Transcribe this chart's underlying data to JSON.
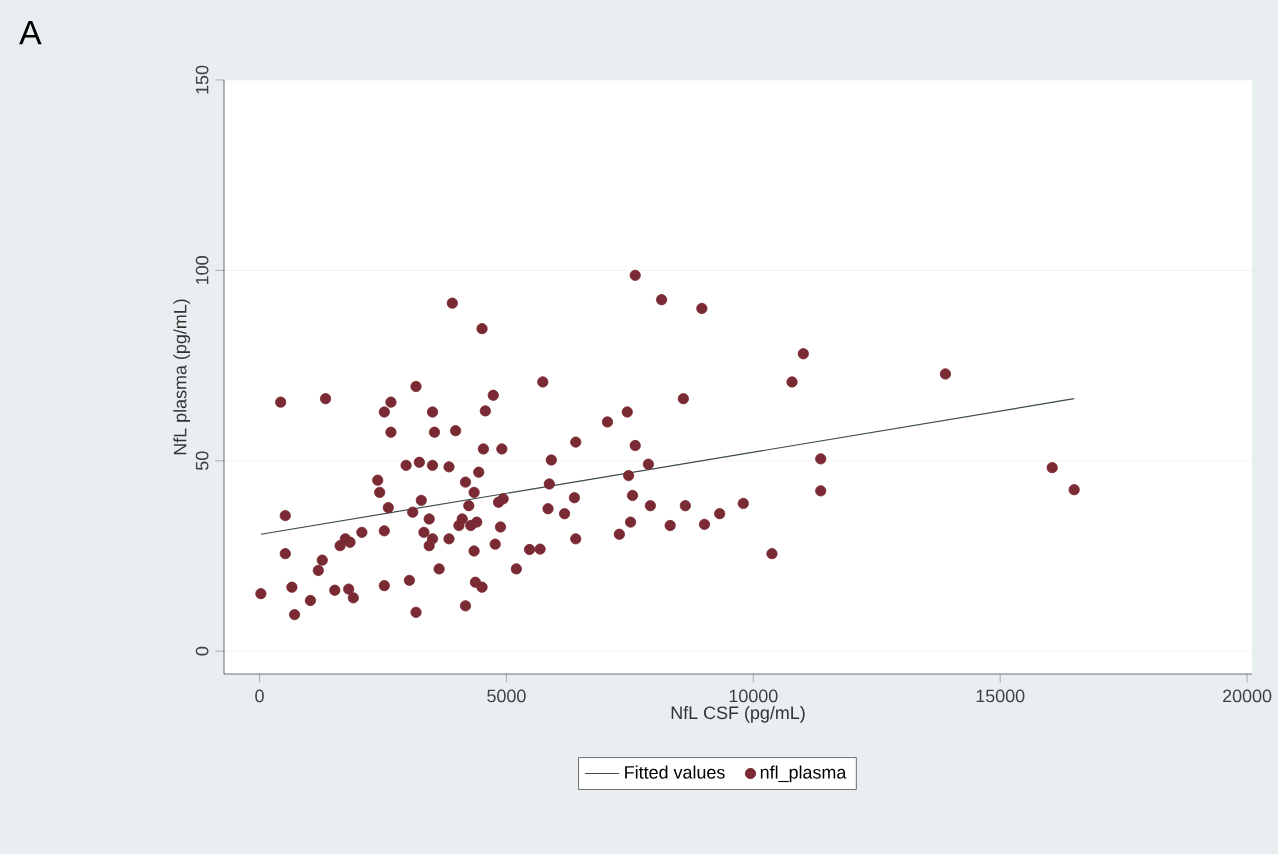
{
  "chart_data": {
    "type": "scatter",
    "xlabel": "NfL CSF (pg/mL)",
    "ylabel": "NfL plasma (pg/mL)",
    "annotations": [
      "A"
    ],
    "xlim": [
      -720,
      20100
    ],
    "ylim": [
      -6,
      150
    ],
    "xticks": [
      0,
      5000,
      10000,
      15000,
      20000
    ],
    "yticks": [
      0,
      50,
      100,
      150
    ],
    "grid": "y",
    "legend": "bottom",
    "series": [
      {
        "name": "Fitted values",
        "type": "line",
        "color": "#3a4a48",
        "line_style": "solid",
        "marker": "none",
        "x": [
          27,
          16498
        ],
        "values": [
          30.7,
          66.3
        ]
      },
      {
        "name": "nfl_plasma",
        "color": "#7a2a33",
        "marker": "circle",
        "x": [
          27,
          428,
          521,
          521,
          655,
          709,
          1030,
          1337,
          1270,
          1190,
          1524,
          1631,
          1738,
          1832,
          1805,
          1899,
          2072,
          2393,
          2433,
          2527,
          2661,
          2661,
          2527,
          2607,
          2527,
          2968,
          3169,
          3169,
          3035,
          3102,
          3236,
          3276,
          3329,
          3436,
          3503,
          3543,
          3503,
          3436,
          3503,
          3637,
          3837,
          3904,
          3971,
          3837,
          4038,
          4105,
          4171,
          4238,
          4171,
          4278,
          4345,
          4399,
          4345,
          4372,
          4506,
          4439,
          4506,
          4573,
          4733,
          4533,
          4907,
          4840,
          4934,
          4880,
          4773,
          5201,
          5468,
          5682,
          5736,
          5869,
          5909,
          5843,
          6177,
          6404,
          6377,
          6404,
          7046,
          7447,
          7287,
          7608,
          7608,
          7474,
          7554,
          7514,
          7875,
          7915,
          8142,
          8316,
          8583,
          8623,
          8958,
          9011,
          9319,
          9797,
          10378,
          10784,
          11013,
          11365,
          11365,
          13891,
          16053,
          16498
        ],
        "values": [
          15.1,
          65.4,
          35.6,
          25.6,
          16.8,
          9.6,
          13.3,
          66.3,
          23.9,
          21.2,
          16.0,
          27.7,
          29.5,
          28.6,
          16.3,
          14.0,
          31.2,
          44.9,
          41.7,
          62.8,
          65.4,
          57.5,
          31.6,
          37.7,
          17.2,
          48.8,
          69.5,
          10.2,
          18.6,
          36.5,
          49.6,
          39.6,
          31.2,
          27.7,
          62.8,
          57.5,
          48.8,
          34.7,
          29.5,
          21.6,
          48.4,
          91.4,
          57.9,
          29.5,
          33.0,
          34.7,
          44.4,
          38.2,
          11.9,
          33.0,
          41.7,
          33.9,
          26.3,
          18.1,
          16.8,
          47.0,
          84.7,
          63.1,
          67.2,
          53.1,
          53.1,
          39.1,
          40.0,
          32.6,
          28.1,
          21.6,
          26.7,
          26.8,
          70.7,
          43.9,
          50.2,
          37.4,
          36.1,
          54.9,
          40.3,
          29.5,
          60.2,
          62.8,
          30.7,
          98.7,
          54.0,
          46.1,
          40.9,
          33.9,
          49.1,
          38.2,
          92.3,
          33.0,
          66.3,
          38.2,
          90.0,
          33.3,
          36.1,
          38.8,
          25.6,
          70.7,
          78.1,
          50.5,
          42.1,
          72.8,
          48.2,
          42.4
        ]
      }
    ]
  }
}
